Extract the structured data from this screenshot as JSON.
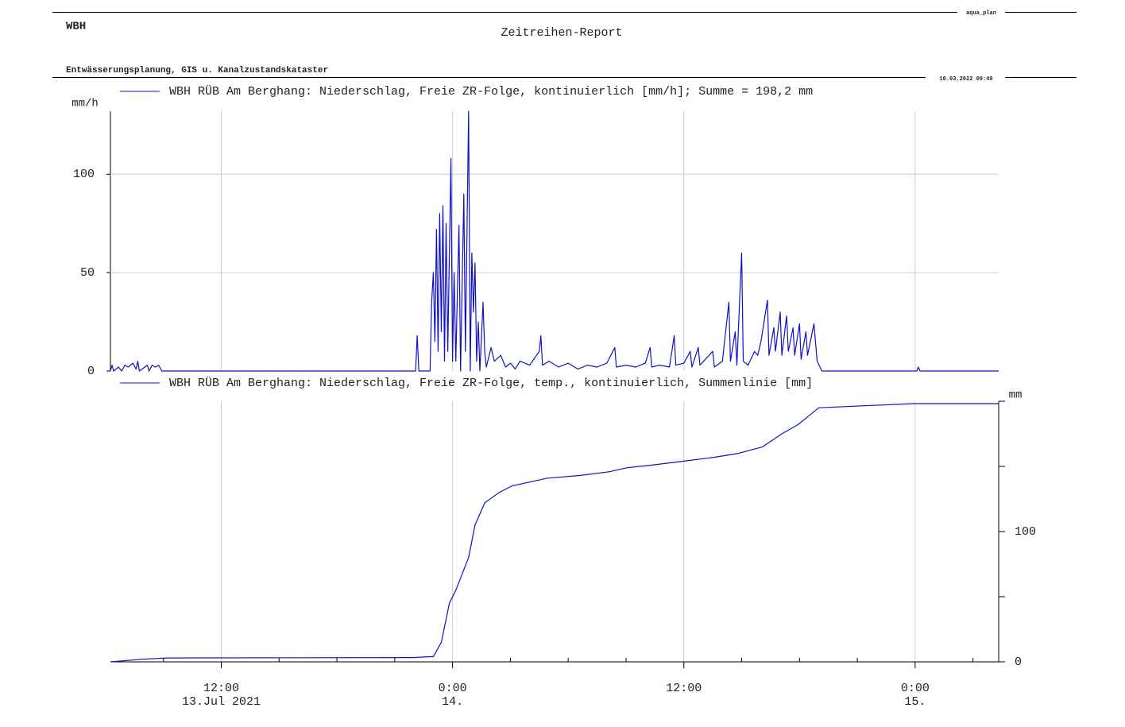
{
  "header": {
    "org": "WBH",
    "title": "Zeitreihen-Report",
    "subtitle": "Entwässerungsplanung, GIS u. Kanalzustandskataster",
    "software": "aqua_plan",
    "timestamp": "18.03.2022 09:49"
  },
  "chart_data": [
    {
      "type": "line",
      "ylabel": "mm/h",
      "ylim": [
        0,
        132
      ],
      "yticks": [
        0,
        50,
        100
      ],
      "grid": true,
      "xlim": [
        "2021-07-13T06:15",
        "2021-07-15T04:20"
      ],
      "xticks": [
        "2021-07-13T12:00",
        "2021-07-14T00:00",
        "2021-07-14T12:00",
        "2021-07-15T00:00"
      ],
      "series": [
        {
          "name": "WBH RÜB Am Berghang: Niederschlag, Freie ZR-Folge, kontinuierlich [mm/h]; Summe = 198,2 mm",
          "color": "#1010c8",
          "x": [
            "2021-07-13T06:15",
            "2021-07-13T06:20",
            "2021-07-13T06:25",
            "2021-07-13T06:40",
            "2021-07-13T06:50",
            "2021-07-13T07:00",
            "2021-07-13T07:10",
            "2021-07-13T07:25",
            "2021-07-13T07:35",
            "2021-07-13T07:40",
            "2021-07-13T07:45",
            "2021-07-13T08:10",
            "2021-07-13T08:15",
            "2021-07-13T08:25",
            "2021-07-13T08:35",
            "2021-07-13T08:45",
            "2021-07-13T08:55",
            "2021-07-13T22:05",
            "2021-07-13T22:10",
            "2021-07-13T22:15",
            "2021-07-13T22:50",
            "2021-07-13T22:55",
            "2021-07-13T23:00",
            "2021-07-13T23:05",
            "2021-07-13T23:10",
            "2021-07-13T23:15",
            "2021-07-13T23:20",
            "2021-07-13T23:25",
            "2021-07-13T23:30",
            "2021-07-13T23:35",
            "2021-07-13T23:40",
            "2021-07-13T23:45",
            "2021-07-13T23:55",
            "2021-07-14T00:00",
            "2021-07-14T00:05",
            "2021-07-14T00:10",
            "2021-07-14T00:20",
            "2021-07-14T00:25",
            "2021-07-14T00:35",
            "2021-07-14T00:40",
            "2021-07-14T00:50",
            "2021-07-14T00:55",
            "2021-07-14T01:00",
            "2021-07-14T01:05",
            "2021-07-14T01:10",
            "2021-07-14T01:15",
            "2021-07-14T01:20",
            "2021-07-14T01:25",
            "2021-07-14T01:35",
            "2021-07-14T01:40",
            "2021-07-14T01:45",
            "2021-07-14T02:00",
            "2021-07-14T02:10",
            "2021-07-14T02:30",
            "2021-07-14T02:45",
            "2021-07-14T03:00",
            "2021-07-14T03:15",
            "2021-07-14T03:30",
            "2021-07-14T04:00",
            "2021-07-14T04:30",
            "2021-07-14T04:35",
            "2021-07-14T04:40",
            "2021-07-14T05:00",
            "2021-07-14T05:30",
            "2021-07-14T06:00",
            "2021-07-14T06:30",
            "2021-07-14T07:00",
            "2021-07-14T07:30",
            "2021-07-14T08:00",
            "2021-07-14T08:25",
            "2021-07-14T08:30",
            "2021-07-14T09:00",
            "2021-07-14T09:30",
            "2021-07-14T10:00",
            "2021-07-14T10:15",
            "2021-07-14T10:20",
            "2021-07-14T10:45",
            "2021-07-14T11:15",
            "2021-07-14T11:30",
            "2021-07-14T11:35",
            "2021-07-14T12:00",
            "2021-07-14T12:20",
            "2021-07-14T12:25",
            "2021-07-14T12:45",
            "2021-07-14T12:50",
            "2021-07-14T13:30",
            "2021-07-14T13:35",
            "2021-07-14T14:00",
            "2021-07-14T14:20",
            "2021-07-14T14:25",
            "2021-07-14T14:40",
            "2021-07-14T14:45",
            "2021-07-14T15:00",
            "2021-07-14T15:05",
            "2021-07-14T15:20",
            "2021-07-14T15:40",
            "2021-07-14T15:50",
            "2021-07-14T16:00",
            "2021-07-14T16:20",
            "2021-07-14T16:25",
            "2021-07-14T16:40",
            "2021-07-14T16:45",
            "2021-07-14T17:00",
            "2021-07-14T17:05",
            "2021-07-14T17:20",
            "2021-07-14T17:25",
            "2021-07-14T17:40",
            "2021-07-14T17:45",
            "2021-07-14T18:00",
            "2021-07-14T18:05",
            "2021-07-14T18:20",
            "2021-07-14T18:25",
            "2021-07-14T18:45",
            "2021-07-14T18:55",
            "2021-07-14T19:10",
            "2021-07-15T00:05",
            "2021-07-15T00:10",
            "2021-07-15T00:15",
            "2021-07-15T04:20"
          ],
          "values": [
            0,
            3,
            0,
            2,
            0,
            3,
            2,
            4,
            1,
            5,
            0,
            3,
            0,
            3,
            2,
            3,
            0,
            0,
            18,
            0,
            0,
            35,
            50,
            15,
            72,
            10,
            80,
            20,
            84,
            5,
            75,
            10,
            108,
            5,
            50,
            5,
            74,
            0,
            90,
            10,
            132,
            0,
            60,
            30,
            55,
            5,
            25,
            0,
            35,
            10,
            2,
            12,
            5,
            8,
            2,
            4,
            1,
            5,
            3,
            10,
            18,
            3,
            5,
            2,
            4,
            1,
            3,
            2,
            4,
            12,
            2,
            3,
            2,
            4,
            12,
            2,
            3,
            2,
            18,
            3,
            4,
            10,
            2,
            12,
            3,
            10,
            2,
            5,
            35,
            5,
            20,
            3,
            60,
            5,
            3,
            10,
            8,
            15,
            36,
            8,
            22,
            10,
            30,
            8,
            28,
            10,
            22,
            8,
            24,
            6,
            20,
            8,
            24,
            5,
            0,
            0,
            2,
            0,
            0
          ]
        }
      ]
    },
    {
      "type": "line",
      "yaxis_side": "right",
      "ylabel": "mm",
      "ylim": [
        0,
        200
      ],
      "yticks": [
        0,
        100
      ],
      "minor_yticks": [
        50,
        150,
        200
      ],
      "grid": false,
      "xlim": [
        "2021-07-13T06:15",
        "2021-07-15T04:20"
      ],
      "xticks": [
        {
          "value": "2021-07-13T12:00",
          "label": "12:00",
          "date_label": "13.Jul 2021"
        },
        {
          "value": "2021-07-14T00:00",
          "label": "0:00",
          "date_label": "14."
        },
        {
          "value": "2021-07-14T12:00",
          "label": "12:00"
        },
        {
          "value": "2021-07-15T00:00",
          "label": "0:00",
          "date_label": "15."
        }
      ],
      "minor_xticks": [
        "2021-07-13T09:00",
        "2021-07-13T15:00",
        "2021-07-13T18:00",
        "2021-07-13T21:00",
        "2021-07-14T03:00",
        "2021-07-14T06:00",
        "2021-07-14T09:00",
        "2021-07-14T15:00",
        "2021-07-14T18:00",
        "2021-07-14T21:00",
        "2021-07-15T03:00"
      ],
      "series": [
        {
          "name": "WBH RÜB Am Berghang: Niederschlag, Freie ZR-Folge, temp., kontinuierlich, Summenlinie [mm]",
          "color": "#1010c8",
          "x": [
            "2021-07-13T06:15",
            "2021-07-13T07:55",
            "2021-07-13T09:10",
            "2021-07-13T21:55",
            "2021-07-13T23:00",
            "2021-07-13T23:25",
            "2021-07-13T23:50",
            "2021-07-14T00:10",
            "2021-07-14T00:50",
            "2021-07-14T01:10",
            "2021-07-14T01:40",
            "2021-07-14T02:25",
            "2021-07-14T03:05",
            "2021-07-14T04:55",
            "2021-07-14T06:35",
            "2021-07-14T08:10",
            "2021-07-14T09:05",
            "2021-07-14T10:20",
            "2021-07-14T12:00",
            "2021-07-14T13:35",
            "2021-07-14T14:50",
            "2021-07-14T16:05",
            "2021-07-14T17:05",
            "2021-07-14T17:55",
            "2021-07-14T19:00",
            "2021-07-14T23:55",
            "2021-07-15T04:20"
          ],
          "values": [
            0,
            2,
            3,
            3.3,
            4,
            15,
            45,
            55,
            80,
            105,
            122,
            130,
            135,
            141,
            143,
            146,
            149,
            151,
            154,
            157,
            160,
            165,
            175,
            182,
            195,
            198.2,
            198.2
          ]
        }
      ]
    }
  ]
}
